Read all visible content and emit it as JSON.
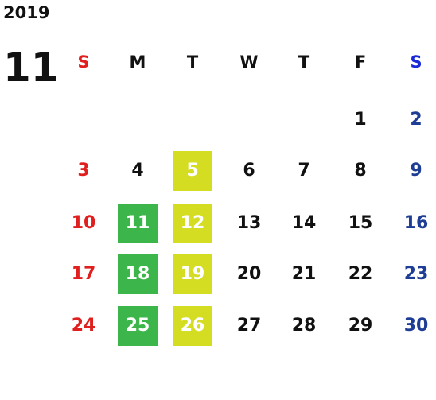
{
  "calendar": {
    "year": "2019",
    "month": "11",
    "weekdays": [
      "S",
      "M",
      "T",
      "W",
      "T",
      "F",
      "S"
    ],
    "colors": {
      "sunday": "#e0201e",
      "saturday": "#1e3d94",
      "weekday": "#111111",
      "green_highlight": "#3cb54a",
      "yellow_highlight": "#d4dd22"
    },
    "weeks": [
      [
        {
          "day": ""
        },
        {
          "day": ""
        },
        {
          "day": ""
        },
        {
          "day": ""
        },
        {
          "day": ""
        },
        {
          "day": "1"
        },
        {
          "day": "2"
        }
      ],
      [
        {
          "day": "3"
        },
        {
          "day": "4"
        },
        {
          "day": "5",
          "highlight": "yellow"
        },
        {
          "day": "6"
        },
        {
          "day": "7"
        },
        {
          "day": "8"
        },
        {
          "day": "9"
        }
      ],
      [
        {
          "day": "10"
        },
        {
          "day": "11",
          "highlight": "green"
        },
        {
          "day": "12",
          "highlight": "yellow"
        },
        {
          "day": "13"
        },
        {
          "day": "14"
        },
        {
          "day": "15"
        },
        {
          "day": "16"
        }
      ],
      [
        {
          "day": "17"
        },
        {
          "day": "18",
          "highlight": "green"
        },
        {
          "day": "19",
          "highlight": "yellow"
        },
        {
          "day": "20"
        },
        {
          "day": "21"
        },
        {
          "day": "22"
        },
        {
          "day": "23"
        }
      ],
      [
        {
          "day": "24"
        },
        {
          "day": "25",
          "highlight": "green"
        },
        {
          "day": "26",
          "highlight": "yellow"
        },
        {
          "day": "27"
        },
        {
          "day": "28"
        },
        {
          "day": "29"
        },
        {
          "day": "30"
        }
      ]
    ]
  }
}
